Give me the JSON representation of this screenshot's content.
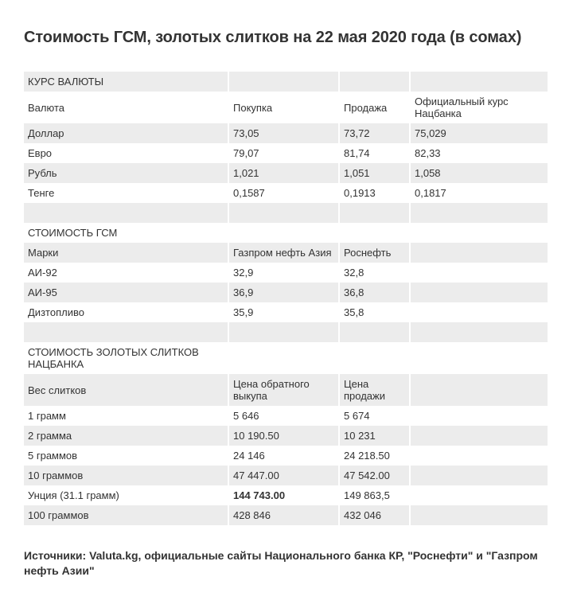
{
  "title": "Стоимость ГСМ, золотых слитков на 22 мая 2020 года (в сомах)",
  "currency": {
    "section_label": "КУРС ВАЛЮТЫ",
    "headers": [
      "Валюта",
      "Покупка",
      "Продажа",
      "Официальный курс Нацбанка"
    ],
    "rows": [
      [
        "Доллар",
        "73,05",
        "73,72",
        "75,029"
      ],
      [
        "Евро",
        "79,07",
        "81,74",
        "82,33"
      ],
      [
        "Рубль",
        "1,021",
        "1,051",
        "1,058"
      ],
      [
        "Тенге",
        "0,1587",
        "0,1913",
        "0,1817"
      ]
    ]
  },
  "fuel": {
    "section_label": "СТОИМОСТЬ ГСМ",
    "headers": [
      "Марки",
      "Газпром нефть Азия",
      "Роснефть",
      ""
    ],
    "rows": [
      [
        "АИ-92",
        "32,9",
        "32,8",
        ""
      ],
      [
        "АИ-95",
        "36,9",
        "36,8",
        ""
      ],
      [
        "Дизтопливо",
        "35,9",
        "35,8",
        ""
      ]
    ]
  },
  "gold": {
    "section_label": "СТОИМОСТЬ ЗОЛОТЫХ СЛИТКОВ НАЦБАНКА",
    "headers": [
      "Вес слитков",
      "Цена обратного выкупа",
      "Цена продажи",
      ""
    ],
    "rows": [
      [
        "1 грамм",
        "5 646",
        "5 674",
        ""
      ],
      [
        "2 грамма",
        "10 190.50",
        "10 231",
        ""
      ],
      [
        "5 граммов",
        "24 146",
        "24 218.50",
        ""
      ],
      [
        "10 граммов",
        "47 447.00",
        "47 542.00",
        ""
      ],
      [
        "Унция (31.1 грамм)",
        "144 743.00",
        "149 863,5",
        ""
      ],
      [
        "100 граммов",
        "428 846",
        "432 046",
        ""
      ]
    ]
  },
  "source": "Источники: Valuta.kg, официальные сайты Национального банка КР, \"Роснефти\" и \"Газпром нефть Азии\""
}
